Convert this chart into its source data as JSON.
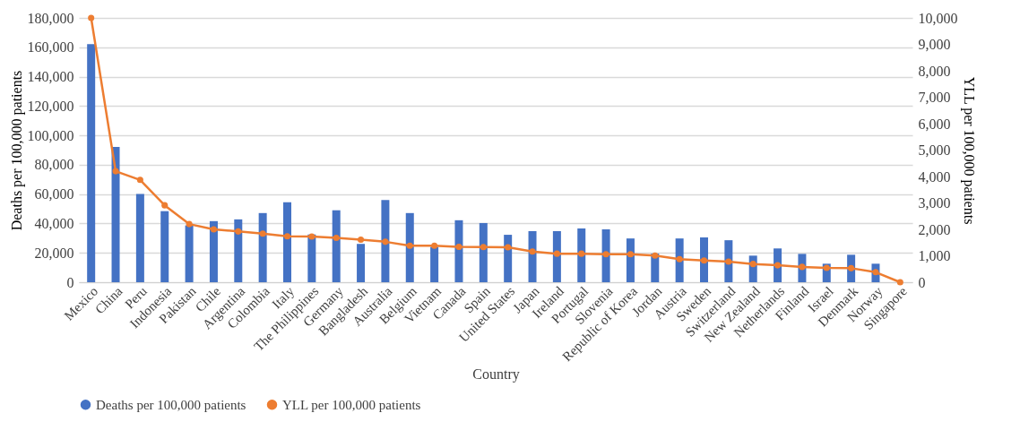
{
  "chart_data": {
    "type": "bar",
    "xlabel": "Country",
    "ylabel": "Deaths per 100,000 patients",
    "y2label": "YLL per 100,000 patients",
    "categories": [
      "Mexico",
      "China",
      "Peru",
      "Indonesia",
      "Pakistan",
      "Chile",
      "Argentina",
      "Colombia",
      "Italy",
      "The Philippines",
      "Germany",
      "Bangladesh",
      "Australia",
      "Belgium",
      "Vietnam",
      "Canada",
      "Spain",
      "United States",
      "Japan",
      "Ireland",
      "Portugal",
      "Slovenia",
      "Republic of Korea",
      "Jordan",
      "Austria",
      "Sweden",
      "Switzerland",
      "New Zealand",
      "Netherlands",
      "Finland",
      "Israel",
      "Denmark",
      "Norway",
      "Singapore"
    ],
    "series": [
      {
        "name": "Deaths per 100,000 patients",
        "color": "#4472c4",
        "values": [
          162100,
          92200,
          60100,
          48400,
          38700,
          41600,
          42800,
          47100,
          54500,
          32500,
          49000,
          26100,
          56000,
          47100,
          24100,
          42200,
          40300,
          32300,
          34800,
          34800,
          36600,
          36000,
          29800,
          19500,
          29800,
          30500,
          28600,
          18100,
          23000,
          19300,
          12600,
          18700,
          12600,
          0
        ]
      },
      {
        "name": "YLL per 100,000 patients",
        "type": "line",
        "axis": "y2",
        "color": "#ed7d31",
        "marker": "circle",
        "values": [
          10000,
          4200,
          3870,
          2910,
          2200,
          2000,
          1920,
          1840,
          1740,
          1730,
          1680,
          1610,
          1530,
          1380,
          1380,
          1340,
          1330,
          1320,
          1160,
          1080,
          1080,
          1060,
          1060,
          1010,
          870,
          820,
          780,
          690,
          640,
          580,
          540,
          530,
          380,
          0
        ]
      }
    ],
    "ylim": [
      0,
      180000
    ],
    "yticks": [
      0,
      {
        "value": 20000,
        "label": "20,000"
      },
      {
        "value": 40000,
        "label": "40,000"
      },
      {
        "value": 60000,
        "label": "60,000"
      },
      {
        "value": 80000,
        "label": "80,000"
      },
      {
        "value": 100000,
        "label": "100,000"
      },
      {
        "value": 120000,
        "label": "120,000"
      },
      {
        "value": 140000,
        "label": "140,000"
      },
      {
        "value": 160000,
        "label": "160,000"
      },
      {
        "value": 180000,
        "label": "180,000"
      }
    ],
    "y2lim": [
      0,
      10000
    ],
    "y2ticks": [
      0,
      {
        "value": 1000,
        "label": "1,000"
      },
      {
        "value": 2000,
        "label": "2,000"
      },
      {
        "value": 3000,
        "label": "3,000"
      },
      {
        "value": 4000,
        "label": "4,000"
      },
      {
        "value": 5000,
        "label": "5,000"
      },
      {
        "value": 6000,
        "label": "6,000"
      },
      {
        "value": 7000,
        "label": "7,000"
      },
      {
        "value": 8000,
        "label": "8,000"
      },
      {
        "value": 9000,
        "label": "9,000"
      },
      {
        "value": 10000,
        "label": "10,000"
      }
    ],
    "grid": "y",
    "legend": "bottom"
  }
}
